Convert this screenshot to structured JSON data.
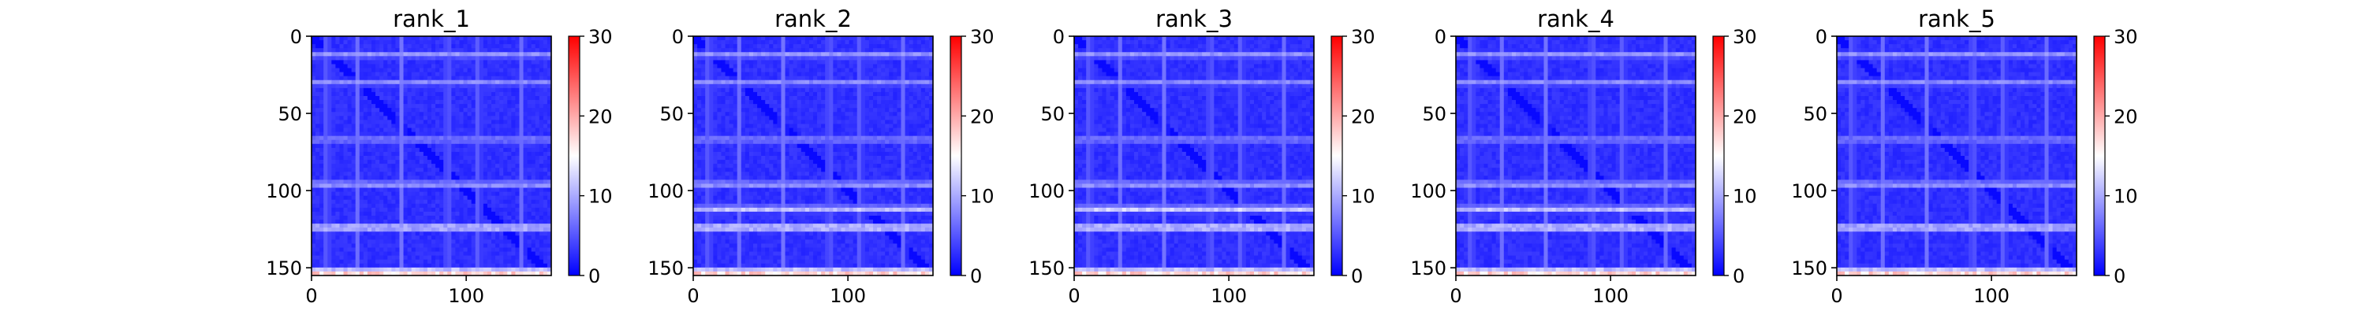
{
  "chart_data": [
    {
      "type": "heatmap",
      "title": "rank_1",
      "xlim": [
        0,
        155
      ],
      "ylim": [
        155,
        0
      ],
      "x_ticks": [
        0,
        100
      ],
      "y_ticks": [
        0,
        50,
        100,
        150
      ],
      "colorbar": {
        "min": 0,
        "max": 30,
        "ticks": [
          0,
          10,
          20,
          30
        ]
      },
      "colormap": [
        "#0000ff",
        "#ffffff",
        "#ff0000"
      ],
      "bright_rows": [
        {
          "row": 12,
          "value": 11
        },
        {
          "row": 30,
          "value": 10
        },
        {
          "row": 67,
          "value": 10
        },
        {
          "row": 96,
          "value": 12
        },
        {
          "row": 124,
          "value": 16
        },
        {
          "row": 153,
          "value": 24
        }
      ],
      "bright_cols": [
        10,
        30,
        58,
        88,
        108,
        136
      ]
    },
    {
      "type": "heatmap",
      "title": "rank_2",
      "xlim": [
        0,
        155
      ],
      "ylim": [
        155,
        0
      ],
      "x_ticks": [
        0,
        100
      ],
      "y_ticks": [
        0,
        50,
        100,
        150
      ],
      "colorbar": {
        "min": 0,
        "max": 30,
        "ticks": [
          0,
          10,
          20,
          30
        ]
      },
      "colormap": [
        "#0000ff",
        "#ffffff",
        "#ff0000"
      ],
      "bright_rows": [
        {
          "row": 12,
          "value": 11
        },
        {
          "row": 30,
          "value": 10
        },
        {
          "row": 67,
          "value": 10
        },
        {
          "row": 96,
          "value": 12
        },
        {
          "row": 112,
          "value": 14
        },
        {
          "row": 124,
          "value": 17
        },
        {
          "row": 153,
          "value": 24
        }
      ],
      "bright_cols": [
        10,
        30,
        58,
        88,
        108,
        136
      ]
    },
    {
      "type": "heatmap",
      "title": "rank_3",
      "xlim": [
        0,
        155
      ],
      "ylim": [
        155,
        0
      ],
      "x_ticks": [
        0,
        100
      ],
      "y_ticks": [
        0,
        50,
        100,
        150
      ],
      "colorbar": {
        "min": 0,
        "max": 30,
        "ticks": [
          0,
          10,
          20,
          30
        ]
      },
      "colormap": [
        "#0000ff",
        "#ffffff",
        "#ff0000"
      ],
      "bright_rows": [
        {
          "row": 12,
          "value": 11
        },
        {
          "row": 30,
          "value": 10
        },
        {
          "row": 67,
          "value": 10
        },
        {
          "row": 96,
          "value": 12
        },
        {
          "row": 112,
          "value": 15
        },
        {
          "row": 124,
          "value": 17
        },
        {
          "row": 153,
          "value": 24
        }
      ],
      "bright_cols": [
        10,
        30,
        58,
        88,
        108,
        136
      ]
    },
    {
      "type": "heatmap",
      "title": "rank_4",
      "xlim": [
        0,
        155
      ],
      "ylim": [
        155,
        0
      ],
      "x_ticks": [
        0,
        100
      ],
      "y_ticks": [
        0,
        50,
        100,
        150
      ],
      "colorbar": {
        "min": 0,
        "max": 30,
        "ticks": [
          0,
          10,
          20,
          30
        ]
      },
      "colormap": [
        "#0000ff",
        "#ffffff",
        "#ff0000"
      ],
      "bright_rows": [
        {
          "row": 12,
          "value": 11
        },
        {
          "row": 30,
          "value": 10
        },
        {
          "row": 67,
          "value": 10
        },
        {
          "row": 96,
          "value": 12
        },
        {
          "row": 112,
          "value": 14
        },
        {
          "row": 124,
          "value": 17
        },
        {
          "row": 153,
          "value": 24
        }
      ],
      "bright_cols": [
        10,
        30,
        58,
        88,
        108,
        136
      ]
    },
    {
      "type": "heatmap",
      "title": "rank_5",
      "xlim": [
        0,
        155
      ],
      "ylim": [
        155,
        0
      ],
      "x_ticks": [
        0,
        100
      ],
      "y_ticks": [
        0,
        50,
        100,
        150
      ],
      "colorbar": {
        "min": 0,
        "max": 30,
        "ticks": [
          0,
          10,
          20,
          30
        ]
      },
      "colormap": [
        "#0000ff",
        "#ffffff",
        "#ff0000"
      ],
      "bright_rows": [
        {
          "row": 12,
          "value": 11
        },
        {
          "row": 30,
          "value": 10
        },
        {
          "row": 67,
          "value": 10
        },
        {
          "row": 96,
          "value": 12
        },
        {
          "row": 124,
          "value": 16
        },
        {
          "row": 153,
          "value": 24
        }
      ],
      "bright_cols": [
        10,
        30,
        58,
        88,
        108,
        136
      ]
    }
  ]
}
